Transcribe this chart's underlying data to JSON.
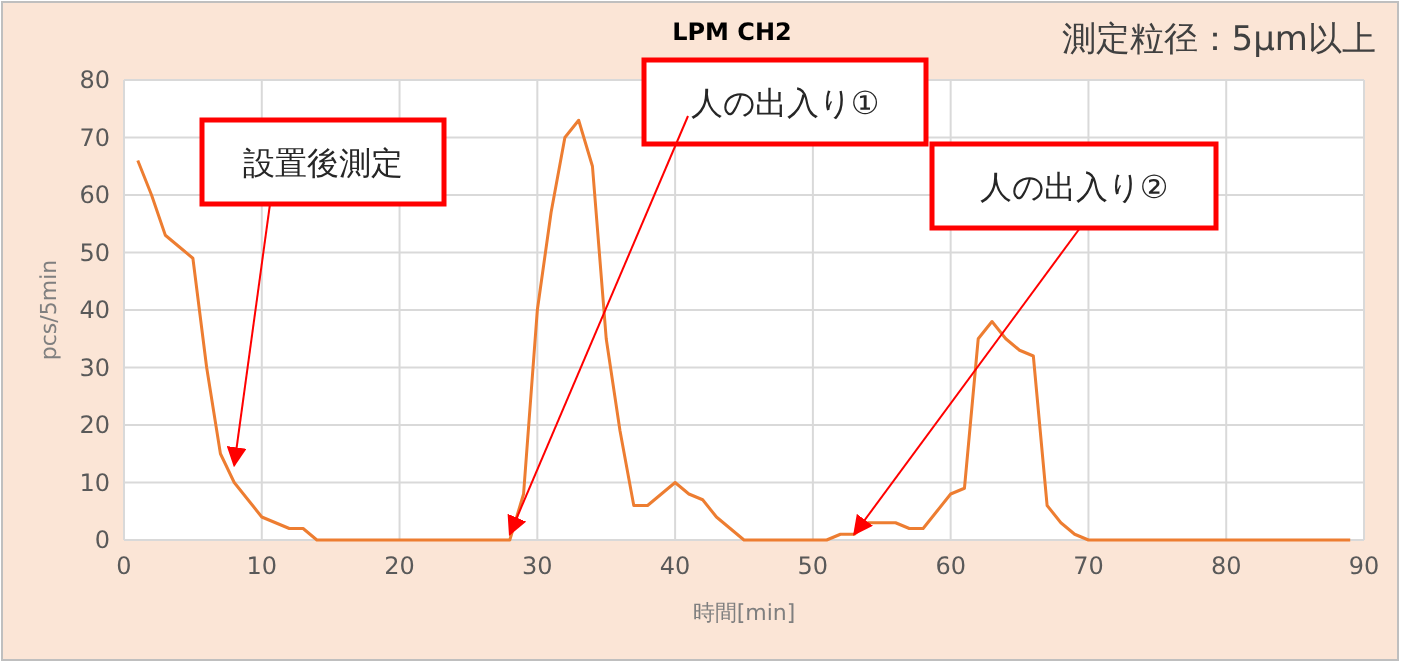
{
  "chart_data": {
    "type": "line",
    "title": "LPM  CH2",
    "subtitle": "測定粒径：5μm以上",
    "xlabel": "時間[min]",
    "ylabel": "pcs/5min",
    "x": [
      1,
      2,
      3,
      4,
      5,
      6,
      7,
      8,
      9,
      10,
      11,
      12,
      13,
      14,
      15,
      16,
      17,
      18,
      19,
      20,
      21,
      22,
      23,
      24,
      25,
      26,
      27,
      28,
      29,
      30,
      31,
      32,
      33,
      34,
      35,
      36,
      37,
      38,
      39,
      40,
      41,
      42,
      43,
      44,
      45,
      46,
      47,
      48,
      49,
      50,
      51,
      52,
      53,
      54,
      55,
      56,
      57,
      58,
      59,
      60,
      61,
      62,
      63,
      64,
      65,
      66,
      67,
      68,
      69,
      70,
      71,
      72,
      73,
      74,
      75,
      76,
      77,
      78,
      79,
      80,
      81,
      82,
      83,
      84,
      85,
      86,
      87,
      88,
      89
    ],
    "series": [
      {
        "color": "#ed7d31",
        "values": [
          66,
          60,
          53,
          51,
          49,
          30,
          15,
          10,
          7,
          4,
          3,
          2,
          2,
          0,
          0,
          0,
          0,
          0,
          0,
          0,
          0,
          0,
          0,
          0,
          0,
          0,
          0,
          0,
          8,
          40,
          57,
          70,
          73,
          65,
          35,
          19,
          6,
          6,
          8,
          10,
          8,
          7,
          4,
          2,
          0,
          0,
          0,
          0,
          0,
          0,
          0,
          1,
          1,
          3,
          3,
          3,
          2,
          2,
          5,
          8,
          9,
          35,
          38,
          35,
          33,
          32,
          6,
          3,
          1,
          0,
          0,
          0,
          0,
          0,
          0,
          0,
          0,
          0,
          0,
          0,
          0,
          0,
          0,
          0,
          0,
          0,
          0,
          0,
          0
        ]
      }
    ],
    "xlim": [
      0,
      90
    ],
    "xticks": [
      0,
      10,
      20,
      30,
      40,
      50,
      60,
      70,
      80,
      90
    ],
    "ylim": [
      0,
      80
    ],
    "yticks": [
      0,
      10,
      20,
      30,
      40,
      50,
      60,
      70,
      80
    ],
    "grid": true,
    "marker": "none",
    "line_style": "solid",
    "annotations": [
      {
        "text": "設置後測定",
        "x": 8,
        "y": 13
      },
      {
        "text": "人の出入り①",
        "x": 28,
        "y": 1
      },
      {
        "text": "人の出入り②",
        "x": 53,
        "y": 1
      }
    ]
  }
}
